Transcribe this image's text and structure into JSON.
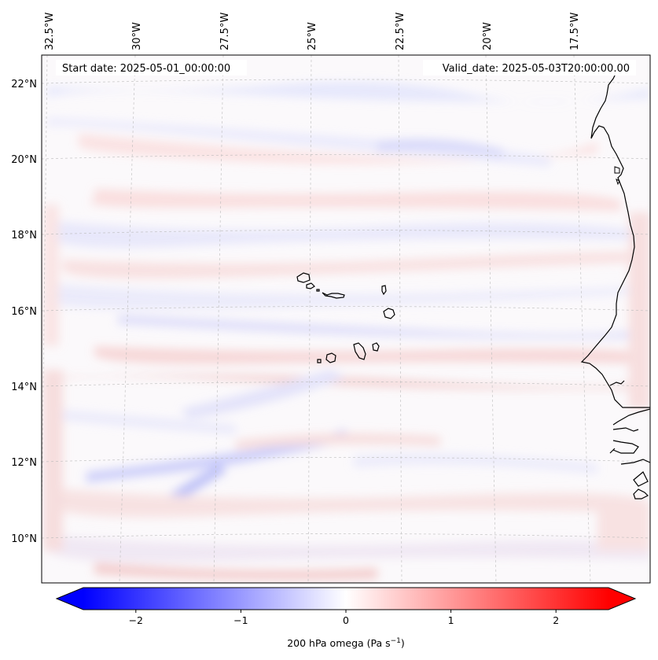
{
  "figure": {
    "start_label": "Start date: 2025-05-01_00:00:00",
    "valid_label": "Valid_date: 2025-05-03T20:00:00.00"
  },
  "map": {
    "lon_labels": [
      "32.5°W",
      "30°W",
      "27.5°W",
      "25°W",
      "22.5°W",
      "20°W",
      "17.5°W"
    ],
    "lat_labels": [
      "22°N",
      "20°N",
      "18°N",
      "16°N",
      "14°N",
      "12°N",
      "10°N"
    ],
    "coastline_color": "#000000",
    "gridline_color": "#bbbbbb"
  },
  "colorbar": {
    "ticks": [
      "−2",
      "−1",
      "0",
      "1",
      "2"
    ],
    "label_prefix": "200 hPa omega (Pa s",
    "label_exp": "−1",
    "label_suffix": ")",
    "min_color": "#0000ff",
    "mid_color": "#ffffff",
    "max_color": "#ff0000"
  },
  "chart_data": {
    "type": "heatmap",
    "title": "",
    "variable": "200 hPa omega",
    "units": "Pa s−1",
    "colormap": "bwr",
    "vmin": -2.5,
    "vmax": 2.5,
    "colorbar_ticks": [
      -2,
      -1,
      0,
      1,
      2
    ],
    "extend": "both",
    "lon_ticks": [
      -32.5,
      -30,
      -27.5,
      -25,
      -22.5,
      -20,
      -17.5
    ],
    "lat_ticks": [
      22,
      20,
      18,
      16,
      14,
      12,
      10
    ],
    "start_date": "2025-05-01_00:00:00",
    "valid_date": "2025-05-03T20:00:00.00"
  }
}
